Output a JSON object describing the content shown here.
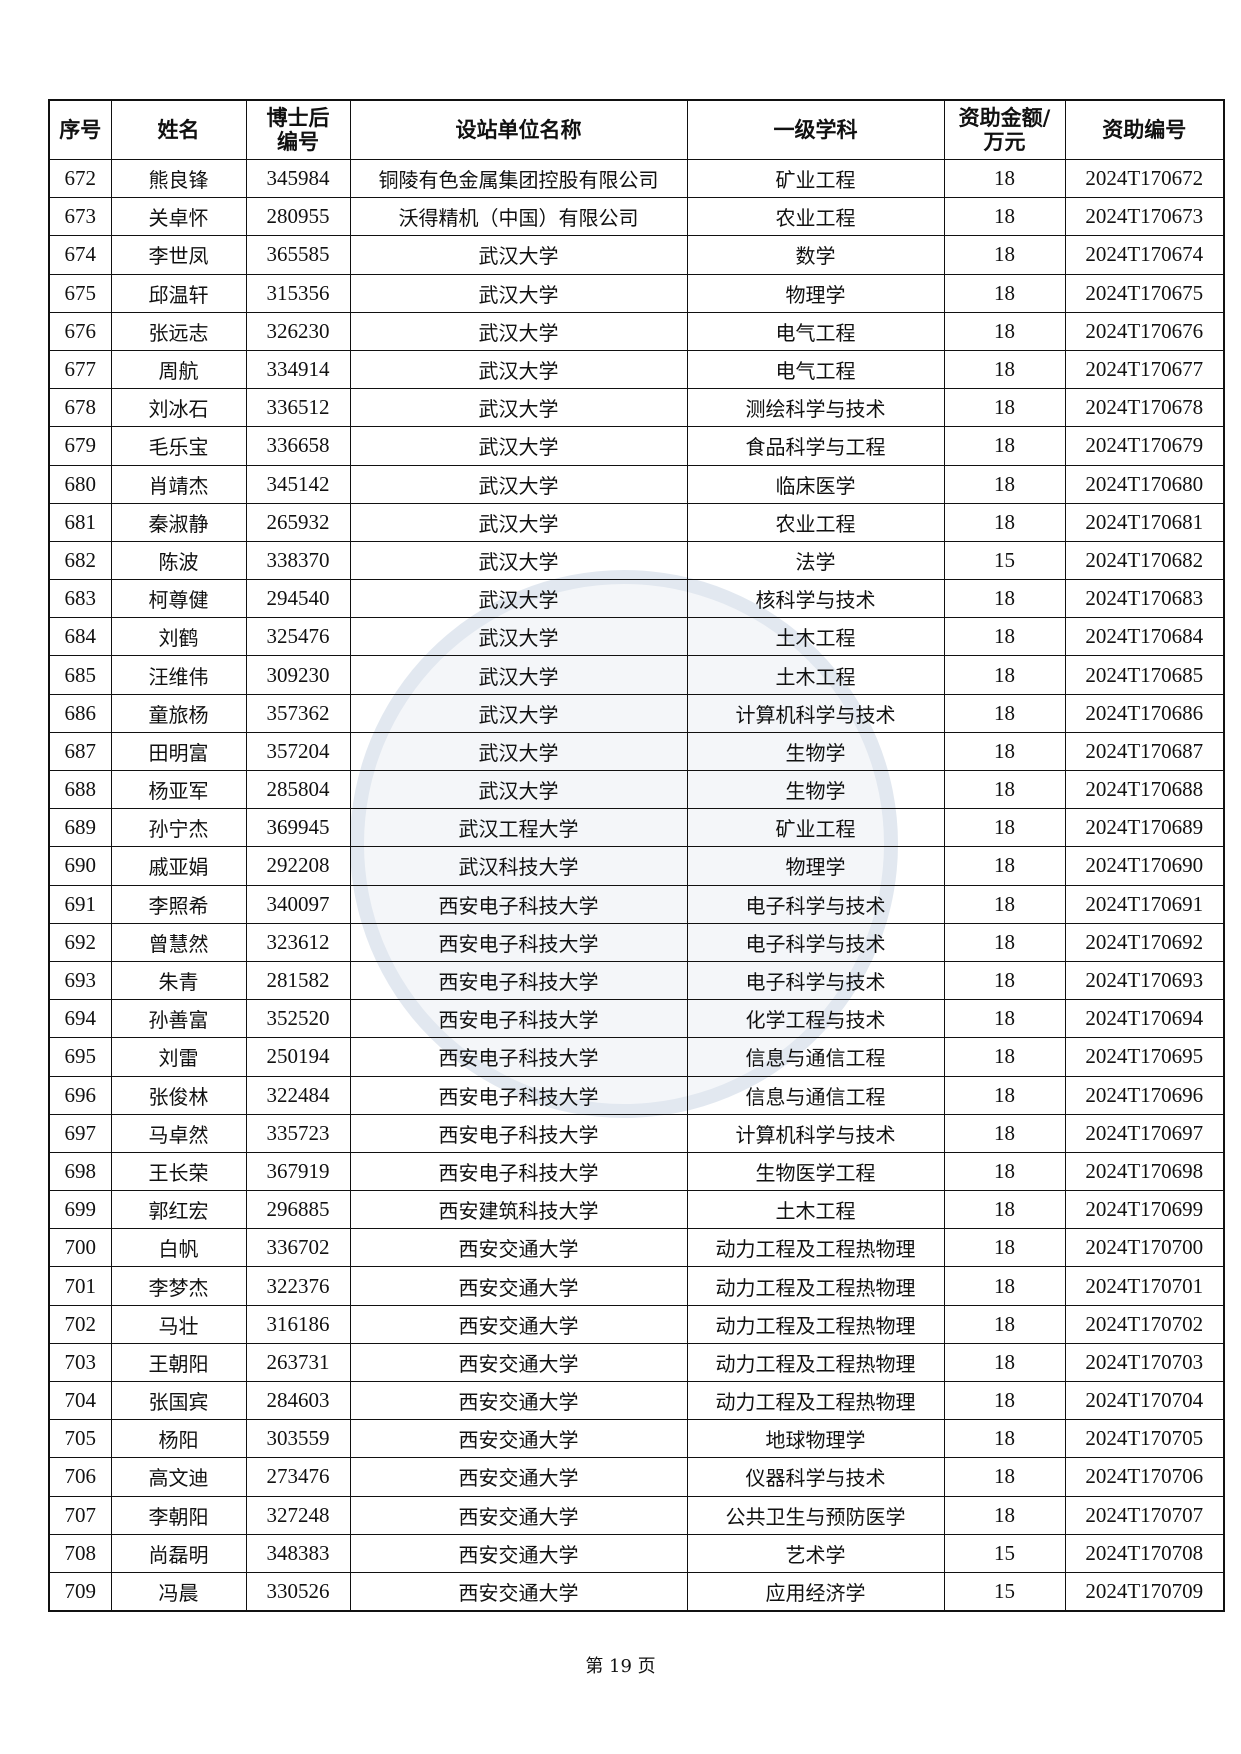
{
  "table": {
    "headers": [
      "序号",
      "姓名",
      "博士后\n编号",
      "设站单位名称",
      "一级学科",
      "资助金额/\n万元",
      "资助编号"
    ],
    "rows": [
      [
        "672",
        "熊良锋",
        "345984",
        "铜陵有色金属集团控股有限公司",
        "矿业工程",
        "18",
        "2024T170672"
      ],
      [
        "673",
        "关卓怀",
        "280955",
        "沃得精机（中国）有限公司",
        "农业工程",
        "18",
        "2024T170673"
      ],
      [
        "674",
        "李世凤",
        "365585",
        "武汉大学",
        "数学",
        "18",
        "2024T170674"
      ],
      [
        "675",
        "邱温轩",
        "315356",
        "武汉大学",
        "物理学",
        "18",
        "2024T170675"
      ],
      [
        "676",
        "张远志",
        "326230",
        "武汉大学",
        "电气工程",
        "18",
        "2024T170676"
      ],
      [
        "677",
        "周航",
        "334914",
        "武汉大学",
        "电气工程",
        "18",
        "2024T170677"
      ],
      [
        "678",
        "刘冰石",
        "336512",
        "武汉大学",
        "测绘科学与技术",
        "18",
        "2024T170678"
      ],
      [
        "679",
        "毛乐宝",
        "336658",
        "武汉大学",
        "食品科学与工程",
        "18",
        "2024T170679"
      ],
      [
        "680",
        "肖靖杰",
        "345142",
        "武汉大学",
        "临床医学",
        "18",
        "2024T170680"
      ],
      [
        "681",
        "秦淑静",
        "265932",
        "武汉大学",
        "农业工程",
        "18",
        "2024T170681"
      ],
      [
        "682",
        "陈波",
        "338370",
        "武汉大学",
        "法学",
        "15",
        "2024T170682"
      ],
      [
        "683",
        "柯尊健",
        "294540",
        "武汉大学",
        "核科学与技术",
        "18",
        "2024T170683"
      ],
      [
        "684",
        "刘鹤",
        "325476",
        "武汉大学",
        "土木工程",
        "18",
        "2024T170684"
      ],
      [
        "685",
        "汪维伟",
        "309230",
        "武汉大学",
        "土木工程",
        "18",
        "2024T170685"
      ],
      [
        "686",
        "童旅杨",
        "357362",
        "武汉大学",
        "计算机科学与技术",
        "18",
        "2024T170686"
      ],
      [
        "687",
        "田明富",
        "357204",
        "武汉大学",
        "生物学",
        "18",
        "2024T170687"
      ],
      [
        "688",
        "杨亚军",
        "285804",
        "武汉大学",
        "生物学",
        "18",
        "2024T170688"
      ],
      [
        "689",
        "孙宁杰",
        "369945",
        "武汉工程大学",
        "矿业工程",
        "18",
        "2024T170689"
      ],
      [
        "690",
        "戚亚娟",
        "292208",
        "武汉科技大学",
        "物理学",
        "18",
        "2024T170690"
      ],
      [
        "691",
        "李照希",
        "340097",
        "西安电子科技大学",
        "电子科学与技术",
        "18",
        "2024T170691"
      ],
      [
        "692",
        "曾慧然",
        "323612",
        "西安电子科技大学",
        "电子科学与技术",
        "18",
        "2024T170692"
      ],
      [
        "693",
        "朱青",
        "281582",
        "西安电子科技大学",
        "电子科学与技术",
        "18",
        "2024T170693"
      ],
      [
        "694",
        "孙善富",
        "352520",
        "西安电子科技大学",
        "化学工程与技术",
        "18",
        "2024T170694"
      ],
      [
        "695",
        "刘雷",
        "250194",
        "西安电子科技大学",
        "信息与通信工程",
        "18",
        "2024T170695"
      ],
      [
        "696",
        "张俊林",
        "322484",
        "西安电子科技大学",
        "信息与通信工程",
        "18",
        "2024T170696"
      ],
      [
        "697",
        "马卓然",
        "335723",
        "西安电子科技大学",
        "计算机科学与技术",
        "18",
        "2024T170697"
      ],
      [
        "698",
        "王长荣",
        "367919",
        "西安电子科技大学",
        "生物医学工程",
        "18",
        "2024T170698"
      ],
      [
        "699",
        "郭红宏",
        "296885",
        "西安建筑科技大学",
        "土木工程",
        "18",
        "2024T170699"
      ],
      [
        "700",
        "白帆",
        "336702",
        "西安交通大学",
        "动力工程及工程热物理",
        "18",
        "2024T170700"
      ],
      [
        "701",
        "李梦杰",
        "322376",
        "西安交通大学",
        "动力工程及工程热物理",
        "18",
        "2024T170701"
      ],
      [
        "702",
        "马壮",
        "316186",
        "西安交通大学",
        "动力工程及工程热物理",
        "18",
        "2024T170702"
      ],
      [
        "703",
        "王朝阳",
        "263731",
        "西安交通大学",
        "动力工程及工程热物理",
        "18",
        "2024T170703"
      ],
      [
        "704",
        "张国宾",
        "284603",
        "西安交通大学",
        "动力工程及工程热物理",
        "18",
        "2024T170704"
      ],
      [
        "705",
        "杨阳",
        "303559",
        "西安交通大学",
        "地球物理学",
        "18",
        "2024T170705"
      ],
      [
        "706",
        "高文迪",
        "273476",
        "西安交通大学",
        "仪器科学与技术",
        "18",
        "2024T170706"
      ],
      [
        "707",
        "李朝阳",
        "327248",
        "西安交通大学",
        "公共卫生与预防医学",
        "18",
        "2024T170707"
      ],
      [
        "708",
        "尚磊明",
        "348383",
        "西安交通大学",
        "艺术学",
        "15",
        "2024T170708"
      ],
      [
        "709",
        "冯晨",
        "330526",
        "西安交通大学",
        "应用经济学",
        "15",
        "2024T170709"
      ]
    ]
  },
  "footer": {
    "page_label": "第 19 页"
  }
}
